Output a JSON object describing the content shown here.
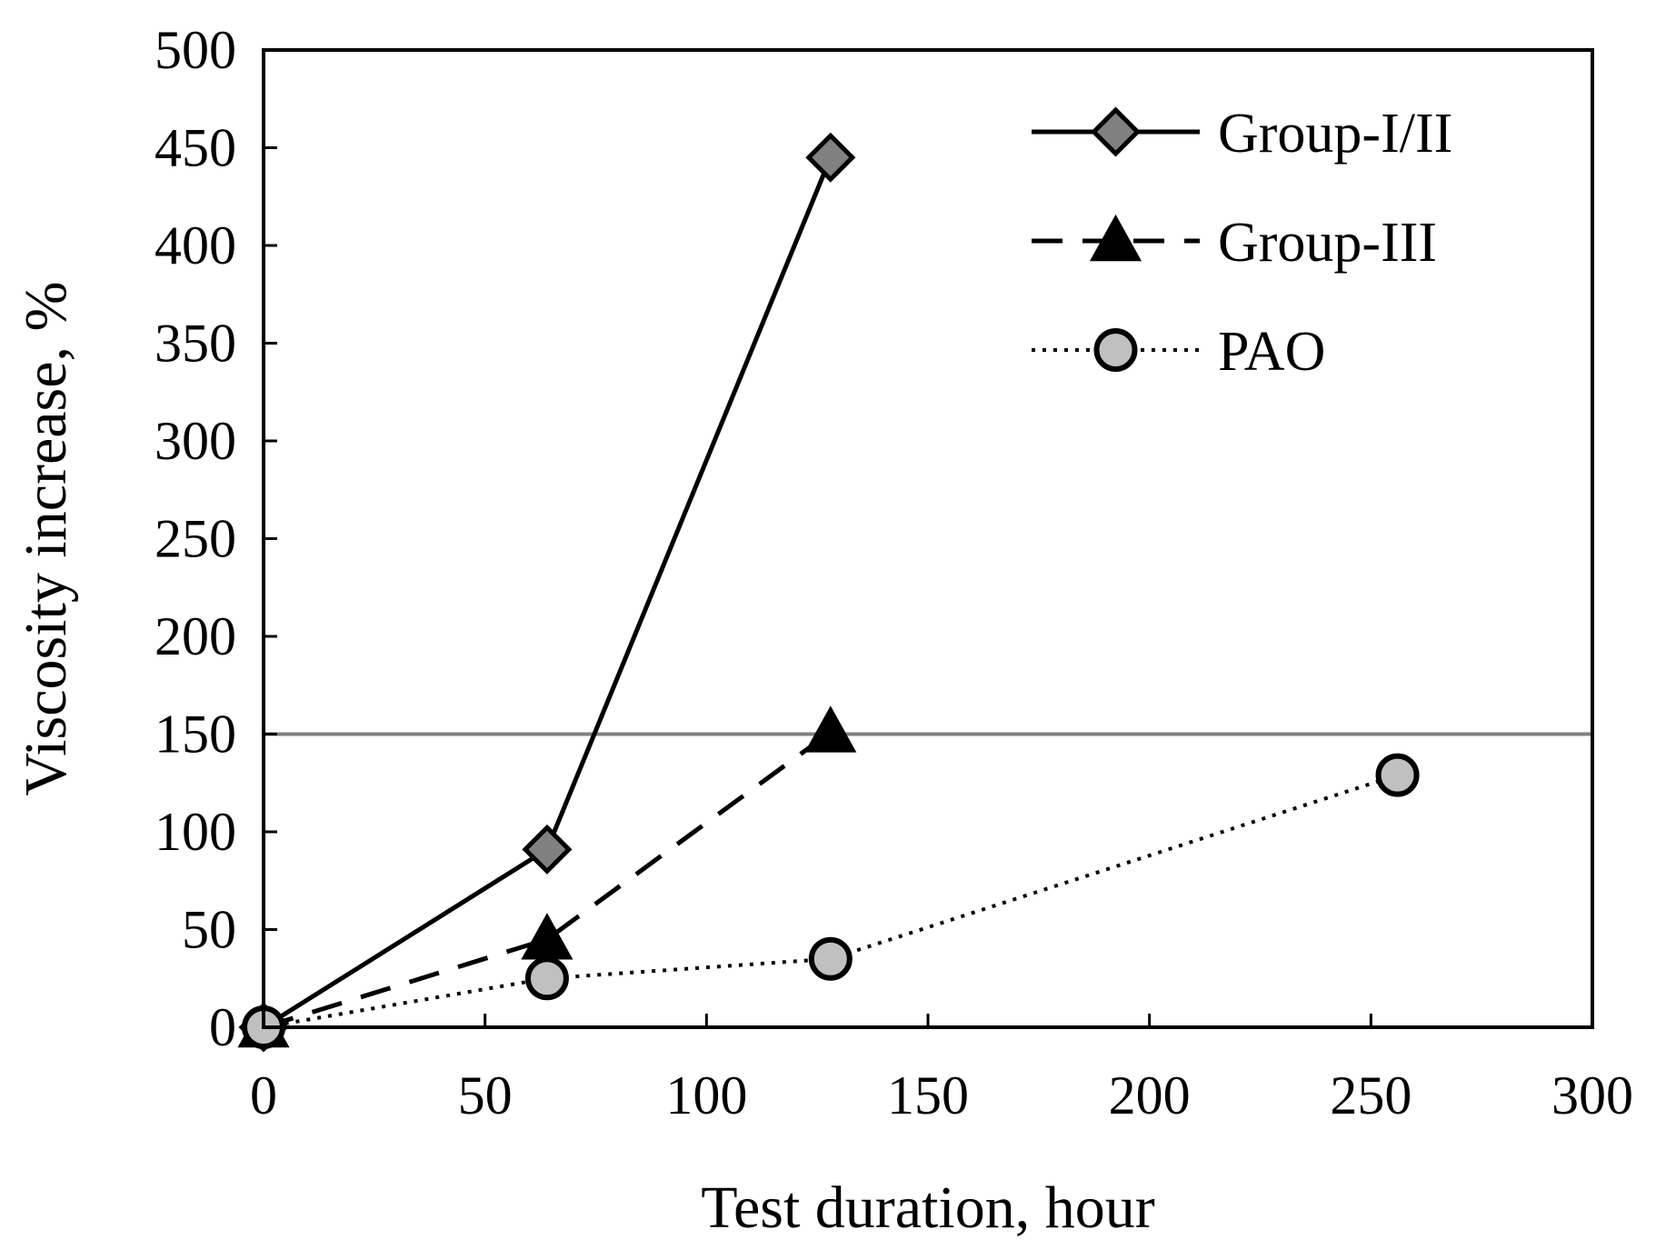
{
  "chart_data": {
    "type": "line",
    "title": "",
    "xlabel": "Test duration, hour",
    "ylabel": "Viscosity increase, %",
    "xlim": [
      0,
      300
    ],
    "ylim": [
      0,
      500
    ],
    "xticks": [
      0,
      50,
      100,
      150,
      200,
      250,
      300
    ],
    "yticks": [
      0,
      50,
      100,
      150,
      200,
      250,
      300,
      350,
      400,
      450,
      500
    ],
    "grid": false,
    "legend_position": "top-right",
    "reference_line": {
      "y": 150,
      "color": "#808080"
    },
    "series": [
      {
        "name": "Group-I/II",
        "x": [
          0,
          64,
          128
        ],
        "y": [
          0,
          91,
          445
        ],
        "marker": "diamond",
        "line_style": "solid",
        "marker_fill": "#808080"
      },
      {
        "name": "Group-III",
        "x": [
          0,
          64,
          128
        ],
        "y": [
          0,
          45,
          151
        ],
        "marker": "triangle",
        "line_style": "dashed",
        "marker_fill": "#000000"
      },
      {
        "name": "PAO",
        "x": [
          0,
          64,
          128,
          256
        ],
        "y": [
          0,
          25,
          35,
          129
        ],
        "marker": "circle",
        "line_style": "dotted",
        "marker_fill": "#c0c0c0"
      }
    ]
  }
}
